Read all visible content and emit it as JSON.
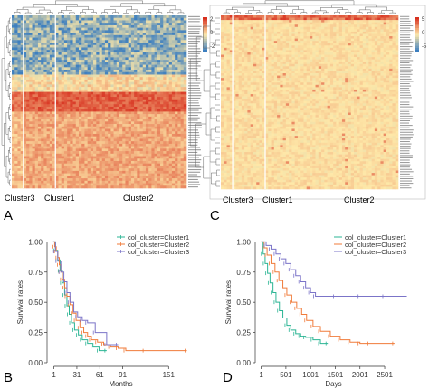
{
  "panels": {
    "a": "A",
    "b": "B",
    "c": "C",
    "d": "D"
  },
  "colors": {
    "cluster1": "#2bb594",
    "cluster2": "#f07b3a",
    "cluster3": "#7b74c8",
    "heat_high": "#d7301f",
    "heat_mid": "#fee8a8",
    "heat_low": "#3d7fbf",
    "tree": "#666666"
  },
  "chart_data": [
    {
      "type": "heatmap",
      "panel": "A",
      "column_clusters": [
        "Cluster3",
        "Cluster1",
        "Cluster2"
      ],
      "legend_ticks": [
        "2",
        "0",
        "-2"
      ],
      "row_blocks": [
        {
          "pattern": "mostly low (blue)",
          "share": 0.33
        },
        {
          "pattern": "mid (yellow)",
          "share": 0.1
        },
        {
          "pattern": "high (orange-red)",
          "share": 0.12
        },
        {
          "pattern": "mid-high (light orange)",
          "share": 0.45
        }
      ]
    },
    {
      "type": "heatmap",
      "panel": "C",
      "column_clusters": [
        "Cluster3",
        "Cluster1",
        "Cluster2"
      ],
      "legend_ticks": [
        "5",
        "0",
        "-5"
      ],
      "row_blocks": [
        {
          "pattern": "high (top rows)",
          "share": 0.03
        },
        {
          "pattern": "near zero (pale yellow)",
          "share": 0.97
        }
      ]
    },
    {
      "type": "line",
      "subtype": "kaplan-meier",
      "panel": "B",
      "ylabel": "Survival rates",
      "xlabel": "Months",
      "xticks": [
        1,
        31,
        61,
        91,
        151
      ],
      "xticklabels": [
        "1",
        "31",
        "61",
        "91",
        "151"
      ],
      "yticks": [
        0,
        0.25,
        0.5,
        0.75,
        1
      ],
      "yticklabels": [
        "0.00",
        "0.25",
        "0.50",
        "0.75",
        "1.00"
      ],
      "xlim": [
        -8,
        185
      ],
      "ylim": [
        -0.03,
        1.07
      ],
      "legend_position": "top-right",
      "series": [
        {
          "name": "col_cluster=Cluster1",
          "color": "#2bb594",
          "x": [
            0,
            3,
            6,
            9,
            12,
            15,
            18,
            21,
            24,
            28,
            33,
            38,
            45,
            52,
            60,
            70
          ],
          "y": [
            1.0,
            0.93,
            0.85,
            0.76,
            0.66,
            0.56,
            0.47,
            0.4,
            0.33,
            0.27,
            0.23,
            0.19,
            0.16,
            0.13,
            0.1,
            0.1
          ]
        },
        {
          "name": "col_cluster=Cluster2",
          "color": "#f07b3a",
          "x": [
            0,
            2,
            4,
            6,
            8,
            10,
            12,
            15,
            18,
            22,
            26,
            30,
            35,
            40,
            45,
            50,
            58,
            66,
            75,
            85,
            95,
            120,
            175
          ],
          "y": [
            1.0,
            0.96,
            0.92,
            0.87,
            0.81,
            0.75,
            0.69,
            0.62,
            0.55,
            0.48,
            0.41,
            0.35,
            0.29,
            0.25,
            0.22,
            0.19,
            0.17,
            0.15,
            0.13,
            0.12,
            0.1,
            0.1,
            0.1
          ]
        },
        {
          "name": "col_cluster=Cluster3",
          "color": "#7b74c8",
          "x": [
            0,
            3,
            6,
            10,
            14,
            18,
            22,
            27,
            32,
            38,
            45,
            55,
            70,
            85
          ],
          "y": [
            1.0,
            0.92,
            0.84,
            0.75,
            0.67,
            0.58,
            0.5,
            0.42,
            0.38,
            0.35,
            0.33,
            0.25,
            0.15,
            0.15
          ]
        }
      ]
    },
    {
      "type": "line",
      "subtype": "kaplan-meier",
      "panel": "D",
      "ylabel": "Survival rates",
      "xlabel": "Days",
      "xticks": [
        1,
        501,
        1001,
        1501,
        2001,
        2501
      ],
      "xticklabels": [
        "1",
        "501",
        "1001",
        "1501",
        "2001",
        "2501"
      ],
      "yticks": [
        0,
        0.25,
        0.5,
        0.75,
        1
      ],
      "yticklabels": [
        "0.00",
        "0.25",
        "0.50",
        "0.75",
        "1.00"
      ],
      "xlim": [
        -120,
        3050
      ],
      "ylim": [
        -0.03,
        1.07
      ],
      "legend_position": "top-right",
      "series": [
        {
          "name": "col_cluster=Cluster1",
          "color": "#2bb594",
          "x": [
            0,
            40,
            80,
            130,
            180,
            240,
            300,
            370,
            440,
            520,
            600,
            700,
            800,
            900,
            1050,
            1200,
            1350
          ],
          "y": [
            1.0,
            0.9,
            0.82,
            0.74,
            0.66,
            0.58,
            0.5,
            0.43,
            0.37,
            0.31,
            0.27,
            0.24,
            0.22,
            0.21,
            0.19,
            0.16,
            0.16
          ]
        },
        {
          "name": "col_cluster=Cluster2",
          "color": "#f07b3a",
          "x": [
            0,
            60,
            120,
            200,
            280,
            360,
            440,
            520,
            620,
            720,
            820,
            920,
            1050,
            1200,
            1400,
            1600,
            1800,
            2000,
            2200,
            2700
          ],
          "y": [
            1.0,
            0.95,
            0.89,
            0.82,
            0.75,
            0.68,
            0.62,
            0.56,
            0.5,
            0.45,
            0.4,
            0.35,
            0.3,
            0.26,
            0.22,
            0.19,
            0.17,
            0.16,
            0.16,
            0.16
          ]
        },
        {
          "name": "col_cluster=Cluster3",
          "color": "#7b74c8",
          "x": [
            0,
            100,
            200,
            300,
            400,
            500,
            600,
            700,
            800,
            900,
            1000,
            1100,
            1500,
            2000,
            2500,
            2950
          ],
          "y": [
            1.0,
            0.97,
            0.94,
            0.9,
            0.86,
            0.82,
            0.77,
            0.72,
            0.67,
            0.62,
            0.58,
            0.55,
            0.55,
            0.55,
            0.55,
            0.55
          ]
        }
      ]
    }
  ]
}
